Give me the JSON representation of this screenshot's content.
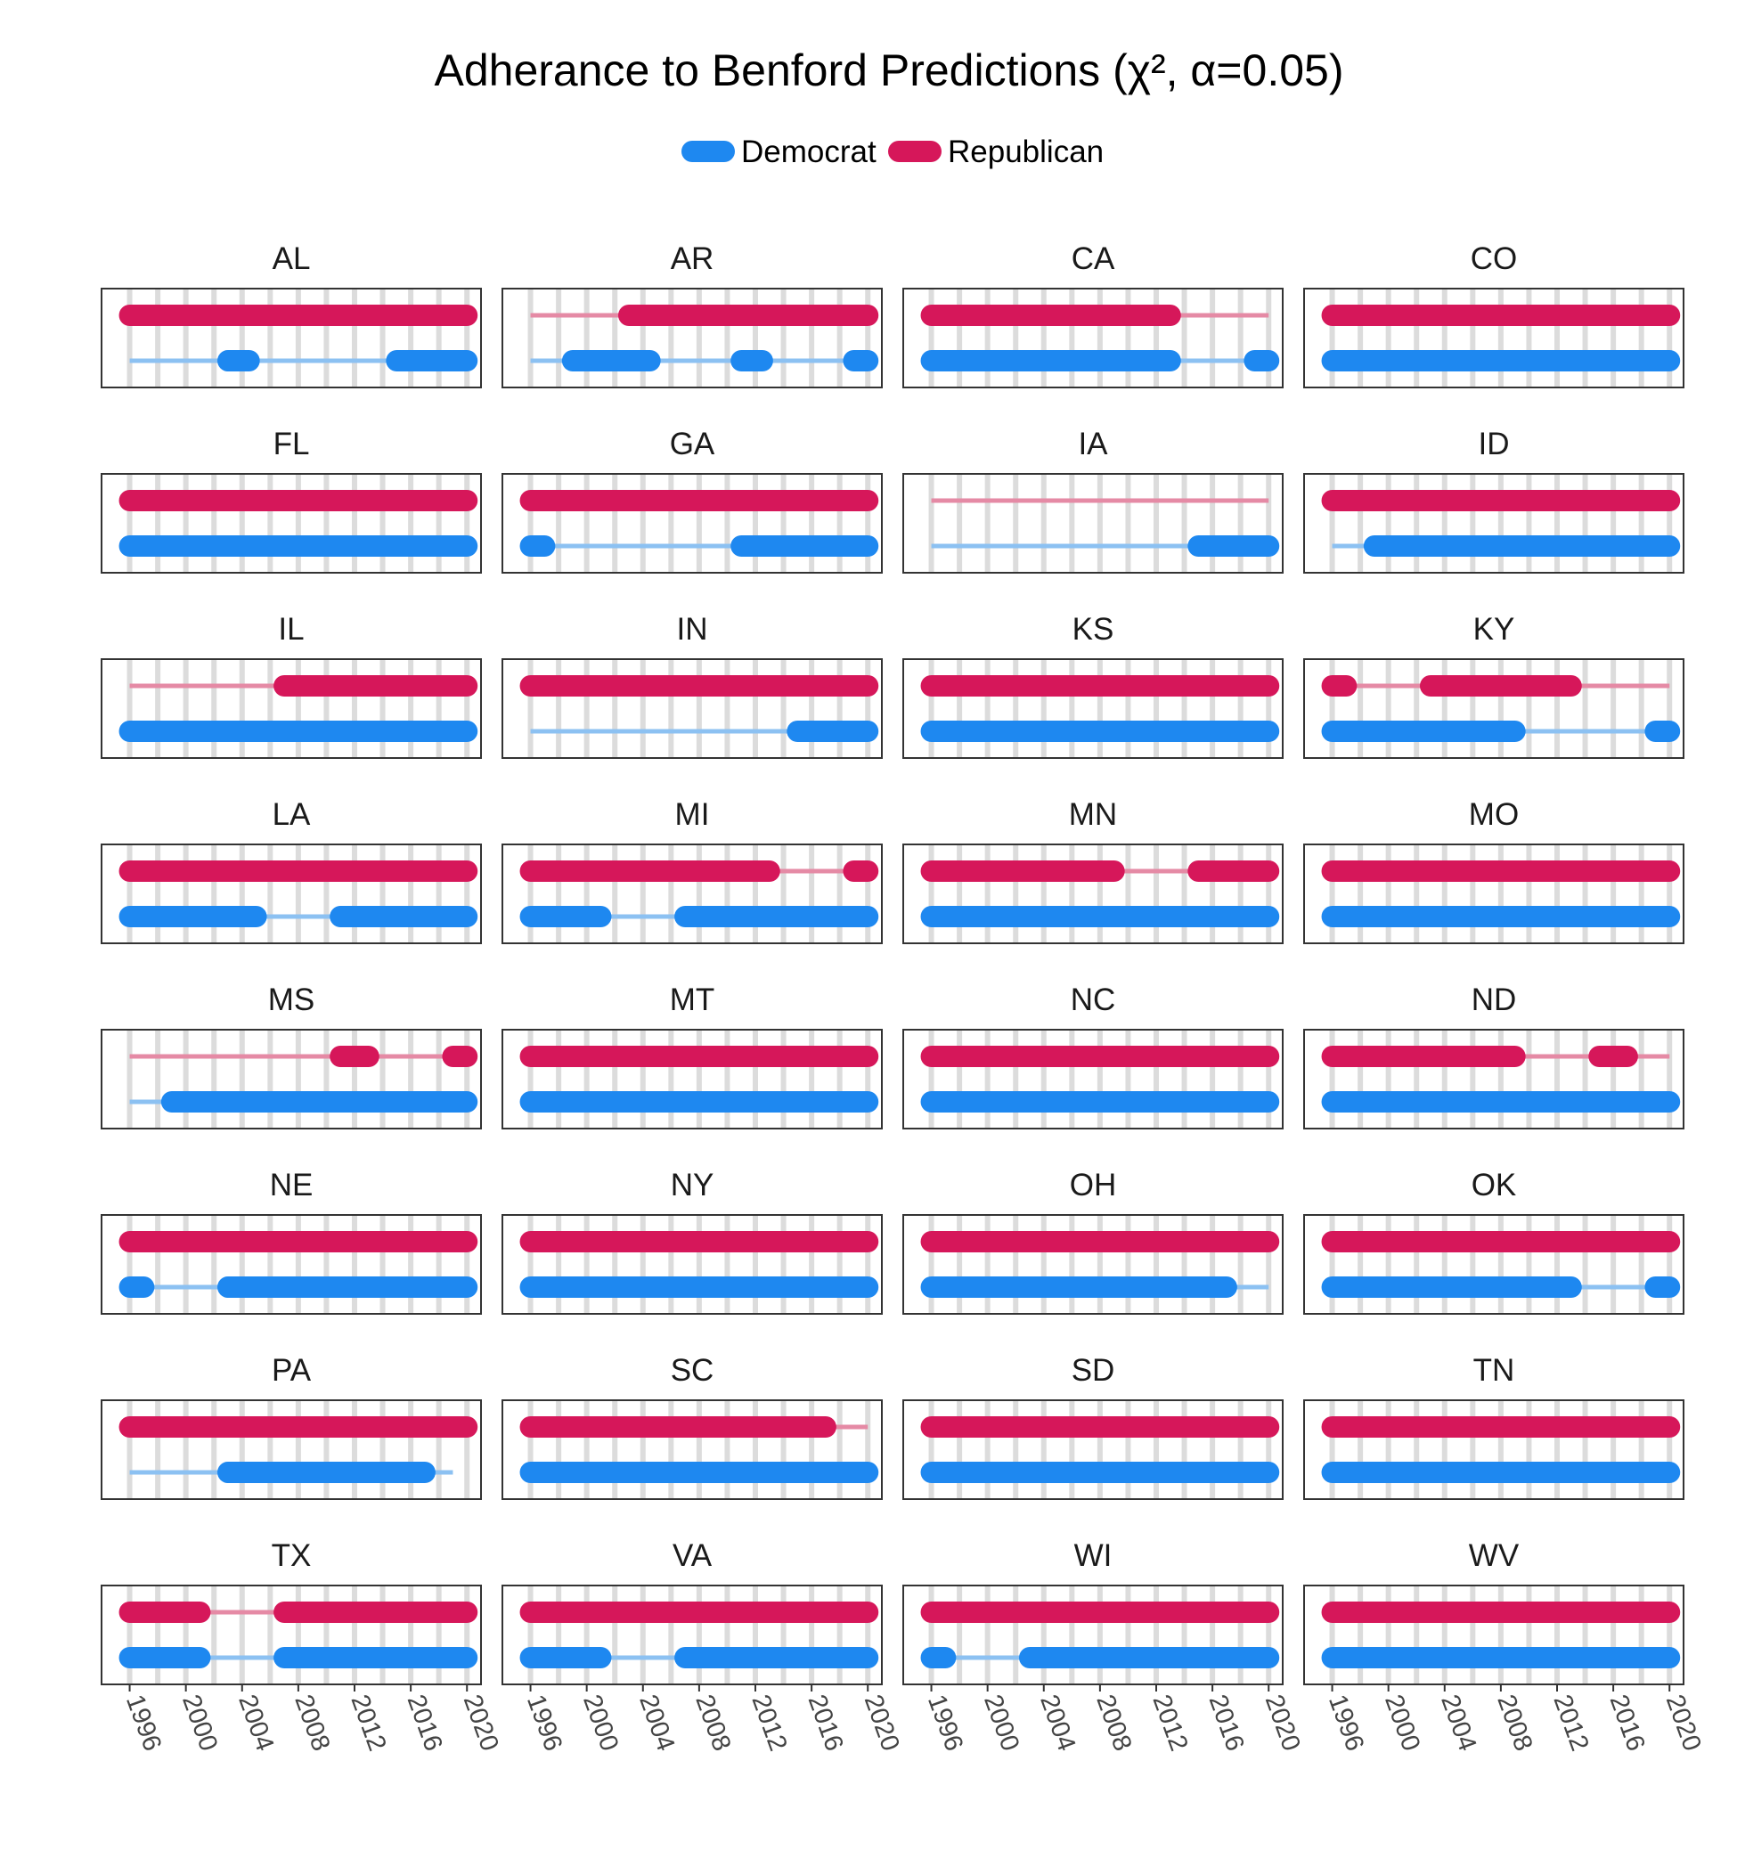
{
  "chart_data": {
    "type": "line",
    "title": "Adherance to Benford Predictions (χ², α=0.05)",
    "legend": {
      "placement": "top",
      "entries": [
        {
          "name": "Democrat",
          "color": "#1E88F0"
        },
        {
          "name": "Republican",
          "color": "#D6175A"
        }
      ]
    },
    "x_ticks": [
      "1996",
      "2000",
      "2004",
      "2008",
      "2012",
      "2016",
      "2020"
    ],
    "x_range": [
      1994,
      2021
    ],
    "years_grid": [
      1996,
      1998,
      2000,
      2002,
      2004,
      2006,
      2008,
      2010,
      2012,
      2014,
      2016,
      2018,
      2020
    ],
    "series_colors": {
      "republican": "#D6175A",
      "republican_light": "#E58AA5",
      "democrat": "#1E88F0",
      "democrat_light": "#8CC1F2"
    },
    "grid": true,
    "note": "",
    "panels": [
      {
        "state": "AL",
        "republican": {
          "range": [
            1996,
            2020
          ],
          "adherent": [
            [
              1996,
              2020
            ]
          ]
        },
        "democrat": {
          "range": [
            1996,
            2020
          ],
          "adherent": [
            [
              2003,
              2004.5
            ],
            [
              2015,
              2020
            ]
          ]
        }
      },
      {
        "state": "AR",
        "republican": {
          "range": [
            1996,
            2020
          ],
          "adherent": [
            [
              2003,
              2020
            ]
          ]
        },
        "democrat": {
          "range": [
            1996,
            2020
          ],
          "adherent": [
            [
              1999,
              2004.5
            ],
            [
              2011,
              2012.5
            ],
            [
              2019,
              2020
            ]
          ]
        }
      },
      {
        "state": "CA",
        "republican": {
          "range": [
            1996,
            2020
          ],
          "adherent": [
            [
              1996,
              2013
            ]
          ]
        },
        "democrat": {
          "range": [
            1996,
            2020
          ],
          "adherent": [
            [
              1996,
              2013
            ],
            [
              2019,
              2020
            ]
          ]
        }
      },
      {
        "state": "CO",
        "republican": {
          "range": [
            1996,
            2020
          ],
          "adherent": [
            [
              1996,
              2020
            ]
          ]
        },
        "democrat": {
          "range": [
            1996,
            2020
          ],
          "adherent": [
            [
              1996,
              2020
            ]
          ]
        }
      },
      {
        "state": "FL",
        "republican": {
          "range": [
            1996,
            2020
          ],
          "adherent": [
            [
              1996,
              2020
            ]
          ]
        },
        "democrat": {
          "range": [
            1996,
            2020
          ],
          "adherent": [
            [
              1996,
              2020
            ]
          ]
        }
      },
      {
        "state": "GA",
        "republican": {
          "range": [
            1996,
            2020
          ],
          "adherent": [
            [
              1996,
              2020
            ]
          ]
        },
        "democrat": {
          "range": [
            1996,
            2020
          ],
          "adherent": [
            [
              1996,
              1997
            ],
            [
              2011,
              2020
            ]
          ]
        }
      },
      {
        "state": "IA",
        "republican": {
          "range": [
            1996,
            2020
          ],
          "adherent": []
        },
        "democrat": {
          "range": [
            1996,
            2020
          ],
          "adherent": [
            [
              2015,
              2020
            ]
          ]
        }
      },
      {
        "state": "ID",
        "republican": {
          "range": [
            1996,
            2020
          ],
          "adherent": [
            [
              1996,
              2020
            ]
          ]
        },
        "democrat": {
          "range": [
            1996,
            2020
          ],
          "adherent": [
            [
              1999,
              2020
            ]
          ]
        }
      },
      {
        "state": "IL",
        "republican": {
          "range": [
            1996,
            2020
          ],
          "adherent": [
            [
              2007,
              2020
            ]
          ]
        },
        "democrat": {
          "range": [
            1996,
            2020
          ],
          "adherent": [
            [
              1996,
              2020
            ]
          ]
        }
      },
      {
        "state": "IN",
        "republican": {
          "range": [
            1996,
            2020
          ],
          "adherent": [
            [
              1996,
              2020
            ]
          ]
        },
        "democrat": {
          "range": [
            1996,
            2020
          ],
          "adherent": [
            [
              2015,
              2020
            ]
          ]
        }
      },
      {
        "state": "KS",
        "republican": {
          "range": [
            1996,
            2020
          ],
          "adherent": [
            [
              1996,
              2020
            ]
          ]
        },
        "democrat": {
          "range": [
            1996,
            2020
          ],
          "adherent": [
            [
              1996,
              2020
            ]
          ]
        }
      },
      {
        "state": "KY",
        "republican": {
          "range": [
            1996,
            2020
          ],
          "adherent": [
            [
              1996,
              1997
            ],
            [
              2003,
              2013
            ]
          ]
        },
        "democrat": {
          "range": [
            1996,
            2020
          ],
          "adherent": [
            [
              1996,
              2009
            ],
            [
              2019,
              2020
            ]
          ]
        }
      },
      {
        "state": "LA",
        "republican": {
          "range": [
            1996,
            2020
          ],
          "adherent": [
            [
              1996,
              2020
            ]
          ]
        },
        "democrat": {
          "range": [
            1996,
            2020
          ],
          "adherent": [
            [
              1996,
              2005
            ],
            [
              2011,
              2020
            ]
          ]
        }
      },
      {
        "state": "MI",
        "republican": {
          "range": [
            1996,
            2020
          ],
          "adherent": [
            [
              1996,
              2013
            ]
          ],
          "extra": [
            [
              2019,
              2020
            ]
          ]
        },
        "democrat": {
          "range": [
            1996,
            2020
          ],
          "adherent": [
            [
              1996,
              2001
            ],
            [
              2007,
              2020
            ]
          ]
        }
      },
      {
        "state": "MN",
        "republican": {
          "range": [
            1996,
            2020
          ],
          "adherent": [
            [
              1996,
              2009
            ],
            [
              2015,
              2020
            ]
          ]
        },
        "democrat": {
          "range": [
            1996,
            2020
          ],
          "adherent": [
            [
              1996,
              2020
            ]
          ]
        }
      },
      {
        "state": "MO",
        "republican": {
          "range": [
            1996,
            2020
          ],
          "adherent": [
            [
              1996,
              2020
            ]
          ]
        },
        "democrat": {
          "range": [
            1996,
            2020
          ],
          "adherent": [
            [
              1996,
              2020
            ]
          ]
        }
      },
      {
        "state": "MS",
        "republican": {
          "range": [
            1996,
            2020
          ],
          "adherent": [
            [
              2011,
              2013
            ],
            [
              2019,
              2020
            ]
          ]
        },
        "democrat": {
          "range": [
            1996,
            2020
          ],
          "adherent": [
            [
              1999,
              2020
            ]
          ]
        }
      },
      {
        "state": "MT",
        "republican": {
          "range": [
            1996,
            2020
          ],
          "adherent": [
            [
              1996,
              2020
            ]
          ]
        },
        "democrat": {
          "range": [
            1996,
            2020
          ],
          "adherent": [
            [
              1996,
              2020
            ]
          ]
        }
      },
      {
        "state": "NC",
        "republican": {
          "range": [
            1996,
            2020
          ],
          "adherent": [
            [
              1996,
              2020
            ]
          ]
        },
        "democrat": {
          "range": [
            1996,
            2020
          ],
          "adherent": [
            [
              1996,
              2020
            ]
          ]
        }
      },
      {
        "state": "ND",
        "republican": {
          "range": [
            1996,
            2020
          ],
          "adherent": [
            [
              1996,
              2009
            ],
            [
              2015,
              2017
            ]
          ]
        },
        "democrat": {
          "range": [
            1996,
            2020
          ],
          "adherent": [
            [
              1996,
              2020
            ]
          ]
        }
      },
      {
        "state": "NE",
        "republican": {
          "range": [
            1996,
            2020
          ],
          "adherent": [
            [
              1996,
              2020
            ]
          ]
        },
        "democrat": {
          "range": [
            1996,
            2020
          ],
          "adherent": [
            [
              1996,
              1997
            ],
            [
              2003,
              2020
            ]
          ]
        }
      },
      {
        "state": "NY",
        "republican": {
          "range": [
            1996,
            2020
          ],
          "adherent": [
            [
              1996,
              2020
            ]
          ]
        },
        "democrat": {
          "range": [
            1996,
            2020
          ],
          "adherent": [
            [
              1996,
              2020
            ]
          ]
        }
      },
      {
        "state": "OH",
        "republican": {
          "range": [
            1996,
            2020
          ],
          "adherent": [
            [
              1996,
              2020
            ]
          ]
        },
        "democrat": {
          "range": [
            1996,
            2020
          ],
          "adherent": [
            [
              1996,
              2017
            ]
          ]
        }
      },
      {
        "state": "OK",
        "republican": {
          "range": [
            1996,
            2020
          ],
          "adherent": [
            [
              1996,
              2020
            ]
          ]
        },
        "democrat": {
          "range": [
            1996,
            2020
          ],
          "adherent": [
            [
              1996,
              2013
            ],
            [
              2019,
              2020
            ]
          ]
        }
      },
      {
        "state": "PA",
        "republican": {
          "range": [
            1996,
            2020
          ],
          "adherent": [
            [
              1996,
              2020
            ]
          ]
        },
        "democrat": {
          "range": [
            1996,
            2019
          ],
          "adherent": [
            [
              2003,
              2017
            ]
          ]
        }
      },
      {
        "state": "SC",
        "republican": {
          "range": [
            1996,
            2020
          ],
          "adherent": [
            [
              1996,
              2017
            ]
          ]
        },
        "democrat": {
          "range": [
            1996,
            2020
          ],
          "adherent": [
            [
              1996,
              2020
            ]
          ]
        }
      },
      {
        "state": "SD",
        "republican": {
          "range": [
            1996,
            2020
          ],
          "adherent": [
            [
              1996,
              2020
            ]
          ]
        },
        "democrat": {
          "range": [
            1996,
            2020
          ],
          "adherent": [
            [
              1996,
              2020
            ]
          ]
        }
      },
      {
        "state": "TN",
        "republican": {
          "range": [
            1996,
            2020
          ],
          "adherent": [
            [
              1996,
              2020
            ]
          ]
        },
        "democrat": {
          "range": [
            1996,
            2020
          ],
          "adherent": [
            [
              1996,
              2020
            ]
          ]
        }
      },
      {
        "state": "TX",
        "republican": {
          "range": [
            1996,
            2020
          ],
          "adherent": [
            [
              1996,
              2001
            ],
            [
              2007,
              2020
            ]
          ]
        },
        "democrat": {
          "range": [
            1996,
            2020
          ],
          "adherent": [
            [
              1996,
              2001
            ],
            [
              2007,
              2020
            ]
          ]
        }
      },
      {
        "state": "VA",
        "republican": {
          "range": [
            1996,
            2020
          ],
          "adherent": [
            [
              1996,
              2020
            ]
          ]
        },
        "democrat": {
          "range": [
            1996,
            2020
          ],
          "adherent": [
            [
              1996,
              2001
            ],
            [
              2007,
              2020
            ]
          ]
        }
      },
      {
        "state": "WI",
        "republican": {
          "range": [
            1996,
            2020
          ],
          "adherent": [
            [
              1996,
              2020
            ]
          ]
        },
        "democrat": {
          "range": [
            1996,
            2020
          ],
          "adherent": [
            [
              1996,
              1997
            ],
            [
              2003,
              2020
            ]
          ]
        }
      },
      {
        "state": "WV",
        "republican": {
          "range": [
            1996,
            2020
          ],
          "adherent": [
            [
              1996,
              2020
            ]
          ]
        },
        "democrat": {
          "range": [
            1996,
            2020
          ],
          "adherent": [
            [
              1996,
              2020
            ]
          ]
        }
      }
    ]
  }
}
